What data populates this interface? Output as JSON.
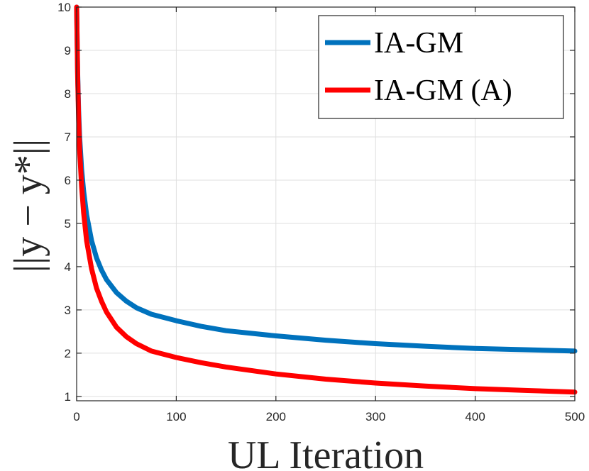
{
  "chart_data": {
    "type": "line",
    "title": "",
    "xlabel": "UL Iteration",
    "ylabel": "||y − y*||",
    "xlim": [
      0,
      500
    ],
    "ylim": [
      0.9,
      10
    ],
    "xticks": [
      0,
      100,
      200,
      300,
      400,
      500
    ],
    "yticks": [
      1,
      2,
      3,
      4,
      5,
      6,
      7,
      8,
      9,
      10
    ],
    "grid": true,
    "legend_position": "top-right",
    "series": [
      {
        "name": "IA-GM",
        "color": "#0072bd",
        "x": [
          0,
          1,
          2,
          3,
          5,
          7,
          10,
          15,
          20,
          25,
          30,
          40,
          50,
          60,
          75,
          100,
          125,
          150,
          200,
          250,
          300,
          350,
          400,
          450,
          500
        ],
        "y": [
          10.0,
          8.5,
          7.6,
          7.0,
          6.25,
          5.75,
          5.2,
          4.6,
          4.2,
          3.92,
          3.7,
          3.4,
          3.2,
          3.05,
          2.9,
          2.75,
          2.62,
          2.52,
          2.4,
          2.3,
          2.22,
          2.16,
          2.11,
          2.08,
          2.05
        ]
      },
      {
        "name": "IA-GM (A)",
        "color": "#ff0000",
        "x": [
          0,
          1,
          2,
          3,
          5,
          7,
          10,
          15,
          20,
          25,
          30,
          40,
          50,
          60,
          75,
          100,
          125,
          150,
          200,
          250,
          300,
          350,
          400,
          450,
          500
        ],
        "y": [
          10.0,
          8.4,
          7.4,
          6.7,
          5.85,
          5.25,
          4.6,
          3.95,
          3.5,
          3.2,
          2.95,
          2.6,
          2.38,
          2.22,
          2.05,
          1.9,
          1.78,
          1.68,
          1.52,
          1.4,
          1.31,
          1.24,
          1.18,
          1.14,
          1.1
        ]
      }
    ]
  }
}
